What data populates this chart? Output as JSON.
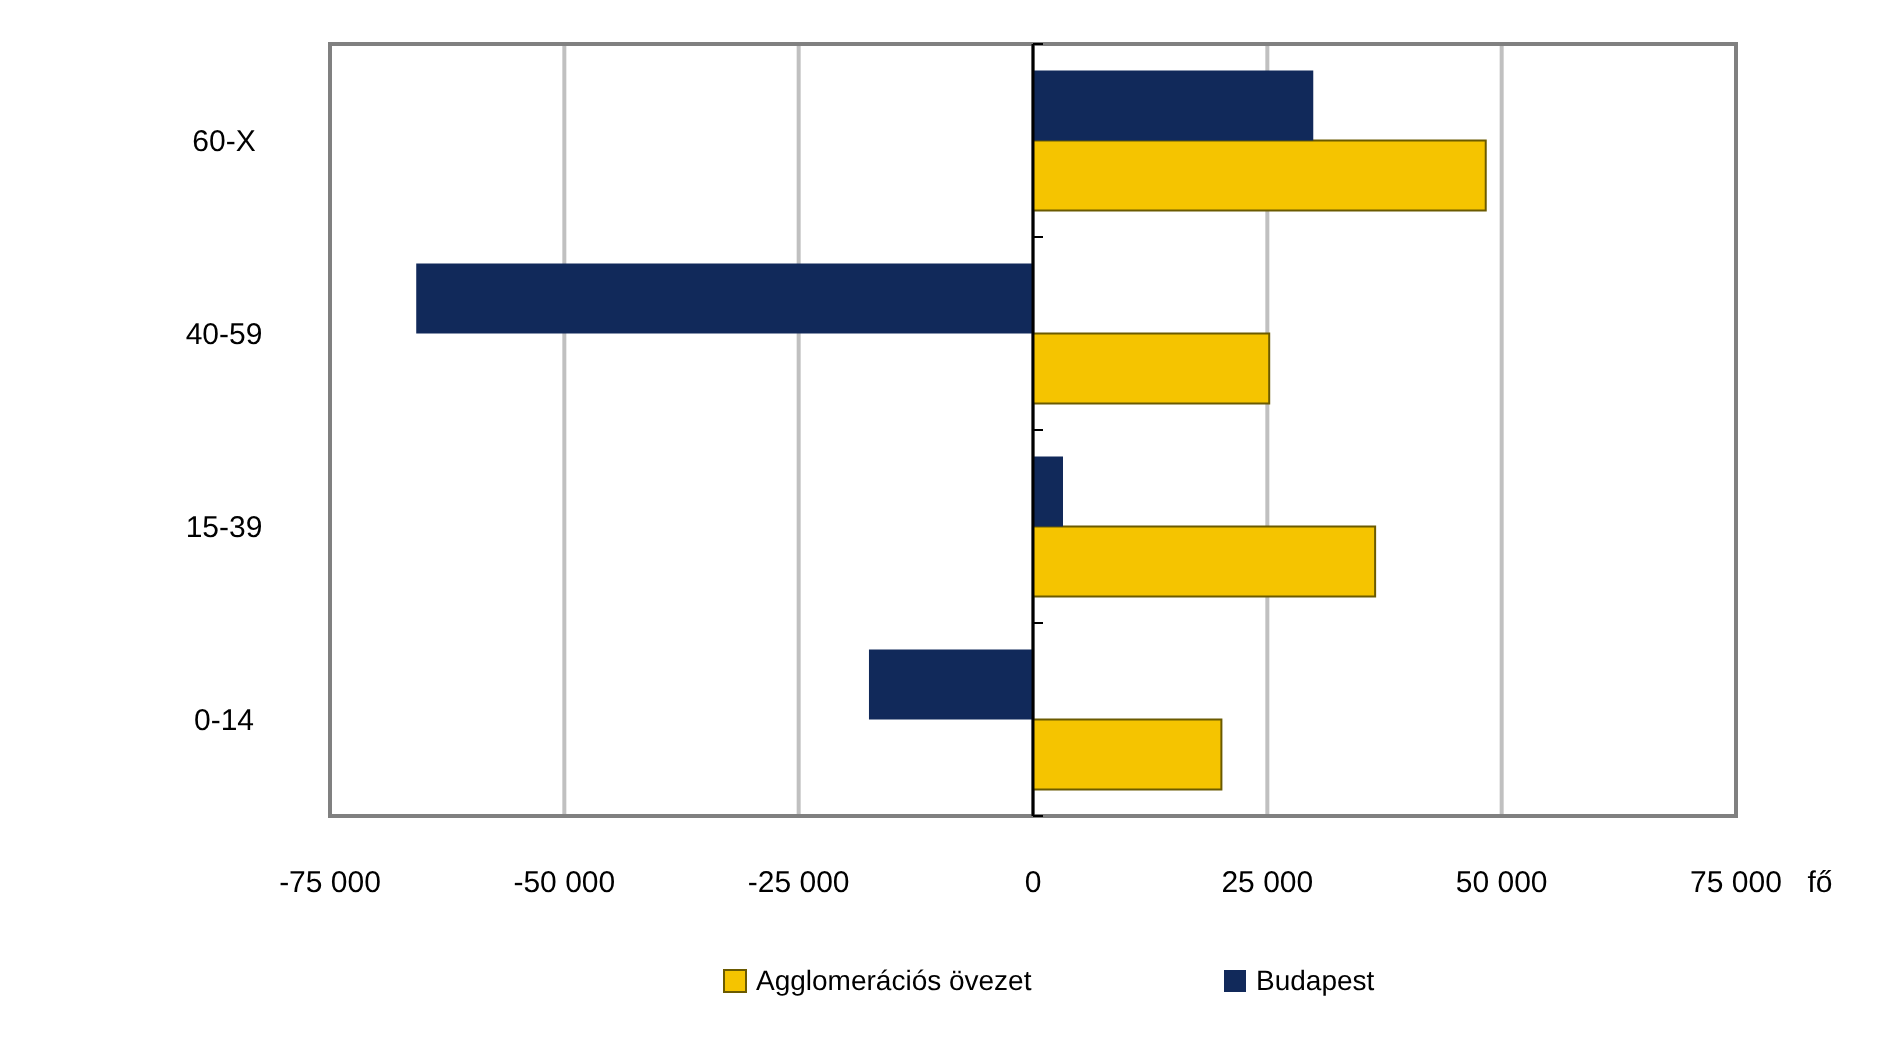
{
  "chart_data": {
    "type": "bar",
    "orientation": "horizontal",
    "categories": [
      "60-X",
      "40-59",
      "15-39",
      "0-14"
    ],
    "series": [
      {
        "name": "Agglomerációs övezet",
        "color": "#f5c400",
        "values": [
          48300,
          25200,
          36500,
          20100
        ]
      },
      {
        "name": "Budapest",
        "color": "#11295a",
        "values": [
          29900,
          -65800,
          3200,
          -17500
        ]
      }
    ],
    "xlim": [
      -75000,
      75000
    ],
    "xticks": [
      {
        "value": -75000,
        "label": "-75 000"
      },
      {
        "value": -50000,
        "label": "-50 000"
      },
      {
        "value": -25000,
        "label": "-25 000"
      },
      0,
      {
        "value": 25000,
        "label": "25 000"
      },
      {
        "value": 50000,
        "label": "50 000"
      },
      {
        "value": 75000,
        "label": "75 000"
      }
    ],
    "xlabel": "fő",
    "grid": "x",
    "legend": "bottom"
  }
}
